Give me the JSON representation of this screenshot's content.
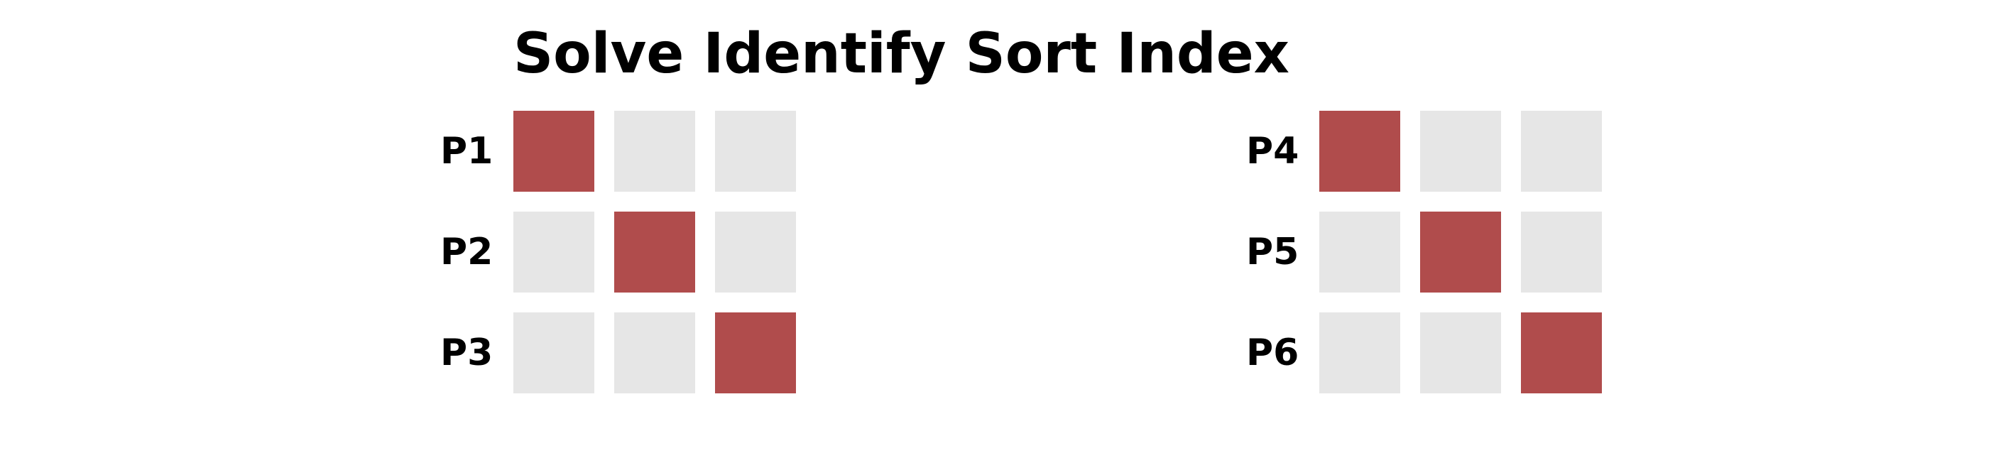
{
  "title": "Solve Identify Sort Index",
  "colors": {
    "active": "#b04c4c",
    "inactive": "#e6e6e6"
  },
  "panels": [
    {
      "rows": [
        {
          "label": "P1",
          "cells": [
            1,
            0,
            0
          ]
        },
        {
          "label": "P2",
          "cells": [
            0,
            1,
            0
          ]
        },
        {
          "label": "P3",
          "cells": [
            0,
            0,
            1
          ]
        }
      ]
    },
    {
      "rows": [
        {
          "label": "P4",
          "cells": [
            1,
            0,
            0
          ]
        },
        {
          "label": "P5",
          "cells": [
            0,
            1,
            0
          ]
        },
        {
          "label": "P6",
          "cells": [
            0,
            0,
            1
          ]
        }
      ]
    }
  ]
}
